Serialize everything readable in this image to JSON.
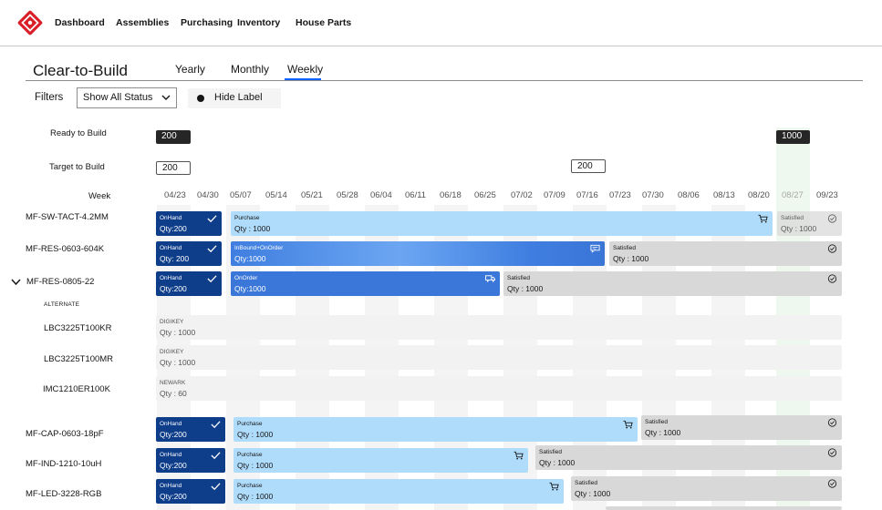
{
  "nav": {
    "items": [
      "Dashboard",
      "Assemblies",
      "Purchasing",
      "Inventory",
      "House Parts"
    ]
  },
  "page": {
    "title": "Clear-to-Build"
  },
  "tabs": [
    "Yearly",
    "Monthly",
    "Weekly"
  ],
  "filters": {
    "label": "Filters",
    "select_value": "Show All Status",
    "toggle_label": "Hide Label"
  },
  "summary": {
    "ready_label": "Ready to Build",
    "ready_values": [
      "200",
      "1000"
    ],
    "target_label": "Target to Build",
    "target_values": [
      "200",
      "200"
    ],
    "week_label": "Week"
  },
  "weeks": [
    "04/23",
    "04/30",
    "05/07",
    "05/14",
    "05/21",
    "05/28",
    "06/04",
    "06/11",
    "06/18",
    "06/25",
    "07/02",
    "07/09",
    "07/16",
    "07/23",
    "07/30",
    "08/06",
    "08/13",
    "08/20",
    "08/27",
    "09/23"
  ],
  "rows": [
    {
      "label": "MF-SW-TACT-4.2MM",
      "bars": [
        {
          "type": "OnHand",
          "qty": "Qty:200"
        },
        {
          "type": "Purchase",
          "qty": "Qty : 1000"
        },
        {
          "type": "Satisfied",
          "qty": "Qty : 1000"
        }
      ]
    },
    {
      "label": "MF-RES-0603-604K",
      "bars": [
        {
          "type": "OnHand",
          "qty": "Qty: 200"
        },
        {
          "type": "InBound+OnOrder",
          "qty": "Qty:1000"
        },
        {
          "type": "Satisfied",
          "qty": "Qty : 1000"
        }
      ]
    },
    {
      "label": "MF-RES-0805-22",
      "bars": [
        {
          "type": "OnHand",
          "qty": "Qty:200"
        },
        {
          "type": "OnOrder",
          "qty": "Qty:1000"
        },
        {
          "type": "Satisfied",
          "qty": "Qty : 1000"
        }
      ]
    },
    {
      "label": "MF-CAP-0603-18pF",
      "bars": [
        {
          "type": "OnHand",
          "qty": "Qty:200"
        },
        {
          "type": "Purchase",
          "qty": "Qty : 1000"
        },
        {
          "type": "Satisfied",
          "qty": "Qty : 1000"
        }
      ]
    },
    {
      "label": "MF-IND-1210-10uH",
      "bars": [
        {
          "type": "OnHand",
          "qty": "Qty:200"
        },
        {
          "type": "Purchase",
          "qty": "Qty : 1000"
        },
        {
          "type": "Satisfied",
          "qty": "Qty : 1000"
        }
      ]
    },
    {
      "label": "MF-LED-3228-RGB",
      "bars": [
        {
          "type": "OnHand",
          "qty": "Qty:200"
        },
        {
          "type": "Purchase",
          "qty": "Qty : 1000"
        },
        {
          "type": "Satisfied",
          "qty": "Qty : 1000"
        }
      ]
    }
  ],
  "alternates": {
    "header": "ALTERNATE",
    "items": [
      {
        "label": "LBC3225T100KR",
        "vendor": "DIGIKEY",
        "qty": "Qty : 1000"
      },
      {
        "label": "LBC3225T100MR",
        "vendor": "DIGIKEY",
        "qty": "Qty : 1000"
      },
      {
        "label": "IMC1210ER100K",
        "vendor": "NEWARK",
        "qty": "Qty : 60"
      }
    ]
  },
  "colors": {
    "onhand": "#0e3d8a",
    "purchase": "#b0dcfb",
    "onorder": "#3b77d8",
    "satisfied": "#d8d8d8",
    "accent": "#0f62fe",
    "logo": "#da1e28"
  },
  "icons": {
    "check": "check-icon",
    "cart": "cart-icon",
    "chat": "chat-icon",
    "truck": "truck-icon",
    "satisfied": "check-circle-icon"
  }
}
